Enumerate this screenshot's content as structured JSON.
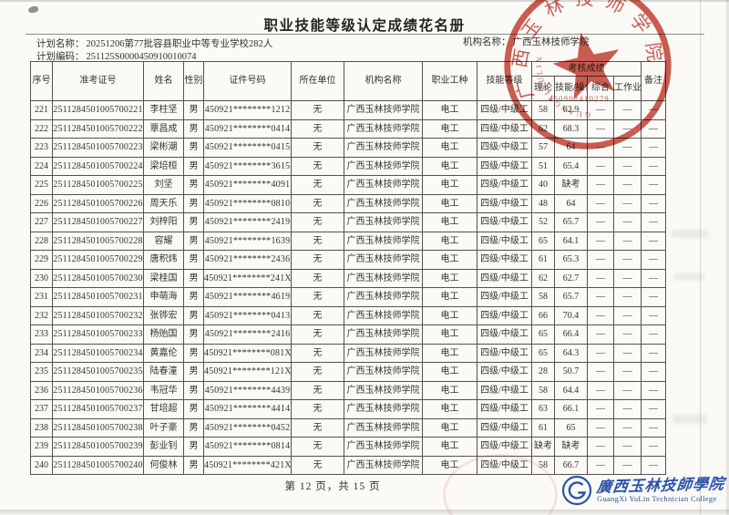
{
  "page": {
    "title": "职业技能等级认定成绩花名册",
    "plan_name_label": "计划名称：",
    "plan_name": "20251206第77批容县职业中等专业学校282人",
    "plan_code_label": "计划编码：",
    "plan_code": "251125S0000450910010074",
    "org_label": "机构名称：",
    "org_name": "广西玉林技师学院",
    "footer_page": "第 12 页，共 15 页"
  },
  "table": {
    "headers": {
      "index": "序号",
      "ticket_no": "准考证号",
      "name": "姓名",
      "gender": "性别",
      "id_no": "证件号码",
      "work_unit": "所在单位",
      "org": "机构名称",
      "occupation": "职业工种",
      "level": "技能等级",
      "score_group": "考核成绩",
      "theory": "理论",
      "skill": "技能/操作",
      "comprehensive": "综合",
      "performance": "工作业绩",
      "remark": "备注"
    },
    "col_keys": [
      "index",
      "ticket_no",
      "name",
      "gender",
      "id_no",
      "work_unit",
      "org",
      "occupation",
      "level",
      "theory",
      "skill",
      "comprehensive",
      "performance",
      "remark"
    ],
    "rows": [
      [
        "221",
        "2511284501005700221",
        "李柱坚",
        "男",
        "450921********1212",
        "无",
        "广西玉林技师学院",
        "电工",
        "四级/中级工",
        "58",
        "62.9",
        "—",
        "—",
        "—"
      ],
      [
        "222",
        "2511284501005700222",
        "覃昌成",
        "男",
        "450921********0414",
        "无",
        "广西玉林技师学院",
        "电工",
        "四级/中级工",
        "62",
        "68.3",
        "—",
        "—",
        "—"
      ],
      [
        "223",
        "2511284501005700223",
        "梁彬潮",
        "男",
        "450921********0415",
        "无",
        "广西玉林技师学院",
        "电工",
        "四级/中级工",
        "57",
        "64",
        "—",
        "—",
        "—"
      ],
      [
        "224",
        "2511284501005700224",
        "梁培桓",
        "男",
        "450921********3615",
        "无",
        "广西玉林技师学院",
        "电工",
        "四级/中级工",
        "51",
        "65.4",
        "—",
        "—",
        "—"
      ],
      [
        "225",
        "2511284501005700225",
        "刘坚",
        "男",
        "450921********4091",
        "无",
        "广西玉林技师学院",
        "电工",
        "四级/中级工",
        "40",
        "缺考",
        "—",
        "—",
        "—"
      ],
      [
        "226",
        "2511284501005700226",
        "周天乐",
        "男",
        "450921********0810",
        "无",
        "广西玉林技师学院",
        "电工",
        "四级/中级工",
        "48",
        "64",
        "—",
        "—",
        "—"
      ],
      [
        "227",
        "2511284501005700227",
        "刘梓阳",
        "男",
        "450921********2419",
        "无",
        "广西玉林技师学院",
        "电工",
        "四级/中级工",
        "52",
        "65.7",
        "—",
        "—",
        "—"
      ],
      [
        "228",
        "2511284501005700228",
        "容耀",
        "男",
        "450921********1639",
        "无",
        "广西玉林技师学院",
        "电工",
        "四级/中级工",
        "65",
        "64.1",
        "—",
        "—",
        "—"
      ],
      [
        "229",
        "2511284501005700229",
        "唐积炜",
        "男",
        "450921********2436",
        "无",
        "广西玉林技师学院",
        "电工",
        "四级/中级工",
        "61",
        "65.3",
        "—",
        "—",
        "—"
      ],
      [
        "230",
        "2511284501005700230",
        "梁桂国",
        "男",
        "450921********241X",
        "无",
        "广西玉林技师学院",
        "电工",
        "四级/中级工",
        "62",
        "62.7",
        "—",
        "—",
        "—"
      ],
      [
        "231",
        "2511284501005700231",
        "申萌海",
        "男",
        "450921********4619",
        "无",
        "广西玉林技师学院",
        "电工",
        "四级/中级工",
        "58",
        "65.7",
        "—",
        "—",
        "—"
      ],
      [
        "232",
        "2511284501005700232",
        "张铧宏",
        "男",
        "450921********0413",
        "无",
        "广西玉林技师学院",
        "电工",
        "四级/中级工",
        "66",
        "70.4",
        "—",
        "—",
        "—"
      ],
      [
        "233",
        "2511284501005700233",
        "杨贻国",
        "男",
        "450921********2416",
        "无",
        "广西玉林技师学院",
        "电工",
        "四级/中级工",
        "65",
        "66.4",
        "—",
        "—",
        "—"
      ],
      [
        "234",
        "2511284501005700234",
        "黄嘉伦",
        "男",
        "450921********081X",
        "无",
        "广西玉林技师学院",
        "电工",
        "四级/中级工",
        "65",
        "64.3",
        "—",
        "—",
        "—"
      ],
      [
        "235",
        "2511284501005700235",
        "陆春潼",
        "男",
        "450921********121X",
        "无",
        "广西玉林技师学院",
        "电工",
        "四级/中级工",
        "28",
        "50.7",
        "—",
        "—",
        "—"
      ],
      [
        "236",
        "2511284501005700236",
        "韦冠华",
        "男",
        "450921********4439",
        "无",
        "广西玉林技师学院",
        "电工",
        "四级/中级工",
        "58",
        "64.4",
        "—",
        "—",
        "—"
      ],
      [
        "237",
        "2511284501005700237",
        "甘培超",
        "男",
        "450921********4414",
        "无",
        "广西玉林技师学院",
        "电工",
        "四级/中级工",
        "63",
        "66.1",
        "—",
        "—",
        "—"
      ],
      [
        "238",
        "2511284501005700238",
        "叶子豪",
        "男",
        "450921********0452",
        "无",
        "广西玉林技师学院",
        "电工",
        "四级/中级工",
        "61",
        "65",
        "—",
        "—",
        "—"
      ],
      [
        "239",
        "2511284501005700239",
        "彭业钊",
        "男",
        "450921********0814",
        "无",
        "广西玉林技师学院",
        "电工",
        "四级/中级工",
        "缺考",
        "缺考",
        "—",
        "—",
        "—"
      ],
      [
        "240",
        "2511284501005700240",
        "何俊林",
        "男",
        "450921********421X",
        "无",
        "广西玉林技师学院",
        "电工",
        "四级/中级工",
        "58",
        "66.7",
        "—",
        "—",
        "—"
      ]
    ]
  },
  "stamp": {
    "ring_text": "广西玉林技师学院",
    "latin_text": "GUANGXIYULIN",
    "code": "450902410279",
    "color": "#c23a2d"
  },
  "logo": {
    "cn": "廣西玉林技師學院",
    "en": "GuangXi YuLin Technician College",
    "color": "#2b52a8"
  }
}
